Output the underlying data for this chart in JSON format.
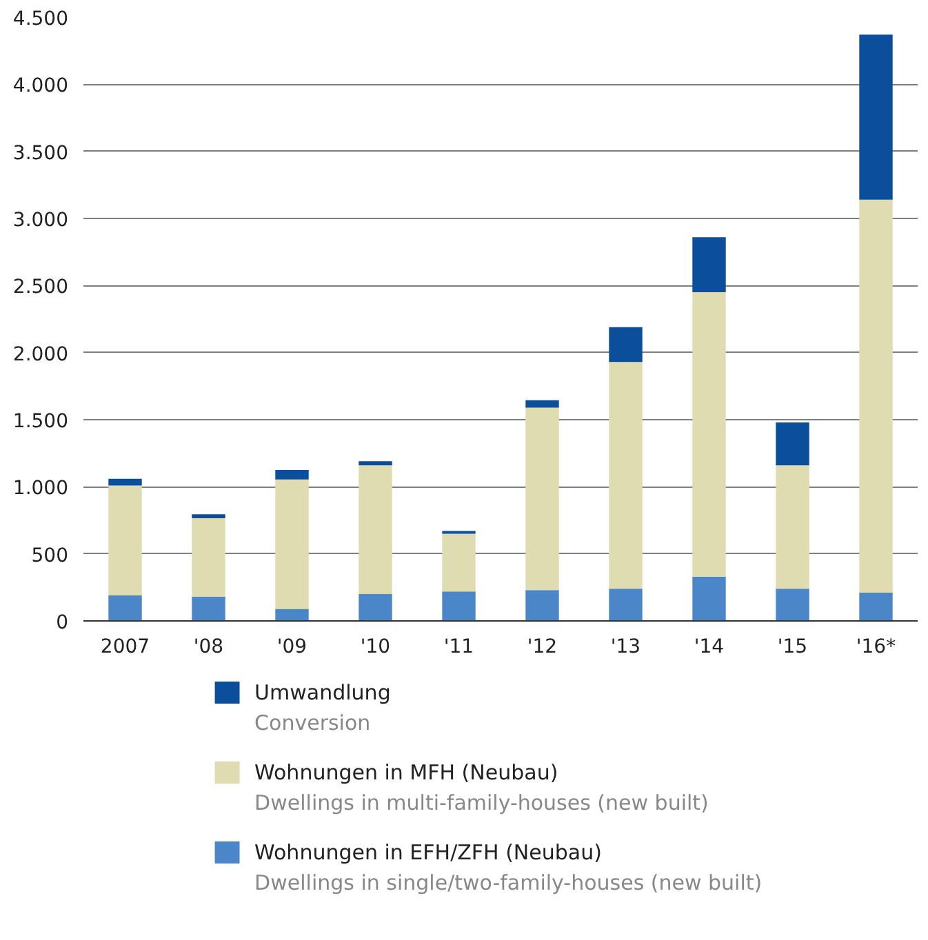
{
  "chart_data": {
    "type": "bar",
    "stacked": true,
    "categories": [
      "2007",
      "'08",
      "'09",
      "'10",
      "'11",
      "'12",
      "'13",
      "'14",
      "'15",
      "'16*"
    ],
    "series": [
      {
        "name": "Wohnungen in EFH/ZFH (Neubau)",
        "color": "#4a86c8",
        "values": [
          190,
          180,
          90,
          200,
          220,
          230,
          240,
          330,
          240,
          210
        ]
      },
      {
        "name": "Wohnungen in MFH (Neubau)",
        "color": "#dedcb0",
        "values": [
          820,
          585,
          965,
          960,
          430,
          1360,
          1690,
          2120,
          920,
          2930
        ]
      },
      {
        "name": "Umwandlung",
        "color": "#0b4f9c",
        "values": [
          50,
          30,
          70,
          30,
          20,
          55,
          260,
          410,
          320,
          1230
        ]
      }
    ],
    "annotations": [
      "Dwellings in single/two-family-houses (new built)",
      "Dwellings in multi-family-houses (new built)",
      "Conversion"
    ],
    "ylim": [
      0,
      4500
    ],
    "yticks": [
      0,
      {
        "value": 500,
        "label": "500"
      },
      {
        "value": 1000,
        "label": "1.000"
      },
      {
        "value": 1500,
        "label": "1.500"
      },
      {
        "value": 2000,
        "label": "2.000"
      },
      {
        "value": 2500,
        "label": "2.500"
      },
      {
        "value": 3000,
        "label": "3.000"
      },
      {
        "value": 3500,
        "label": "3.500"
      },
      {
        "value": 4000,
        "label": "4.000"
      },
      {
        "value": 4500,
        "label": "4.500"
      }
    ],
    "grid": "y",
    "legend": "bottom"
  }
}
